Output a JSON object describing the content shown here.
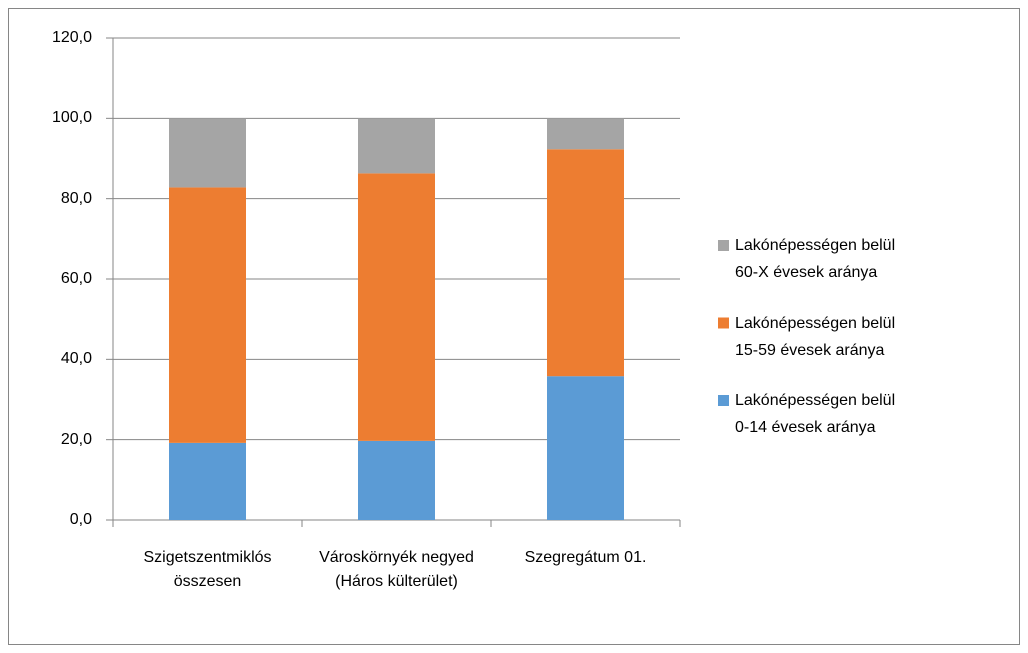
{
  "chart_data": {
    "type": "stacked_bar",
    "categories": [
      "Szigetszentmiklós összesen",
      "Városkörnyék negyed (Háros külterület)",
      "Szegregátum 01."
    ],
    "series": [
      {
        "name": "Lakónépességen belül 0-14 évesek aránya",
        "color": "#5b9bd5",
        "values": [
          19.2,
          19.7,
          35.8
        ]
      },
      {
        "name": "Lakónépességen belül 15-59 évesek aránya",
        "color": "#ed7d31",
        "values": [
          63.6,
          66.6,
          56.5
        ]
      },
      {
        "name": "Lakónépességen belül 60-X évesek aránya",
        "color": "#a5a5a5",
        "values": [
          17.2,
          13.7,
          7.7
        ]
      }
    ],
    "ylim": [
      0,
      120
    ],
    "yticks": [
      {
        "value": 0,
        "label": "0,0"
      },
      {
        "value": 20,
        "label": "20,0"
      },
      {
        "value": 40,
        "label": "40,0"
      },
      {
        "value": 60,
        "label": "60,0"
      },
      {
        "value": 80,
        "label": "80,0"
      },
      {
        "value": 100,
        "label": "100,0"
      },
      {
        "value": 120,
        "label": "120,0"
      }
    ],
    "grid": true,
    "legend": "right"
  }
}
